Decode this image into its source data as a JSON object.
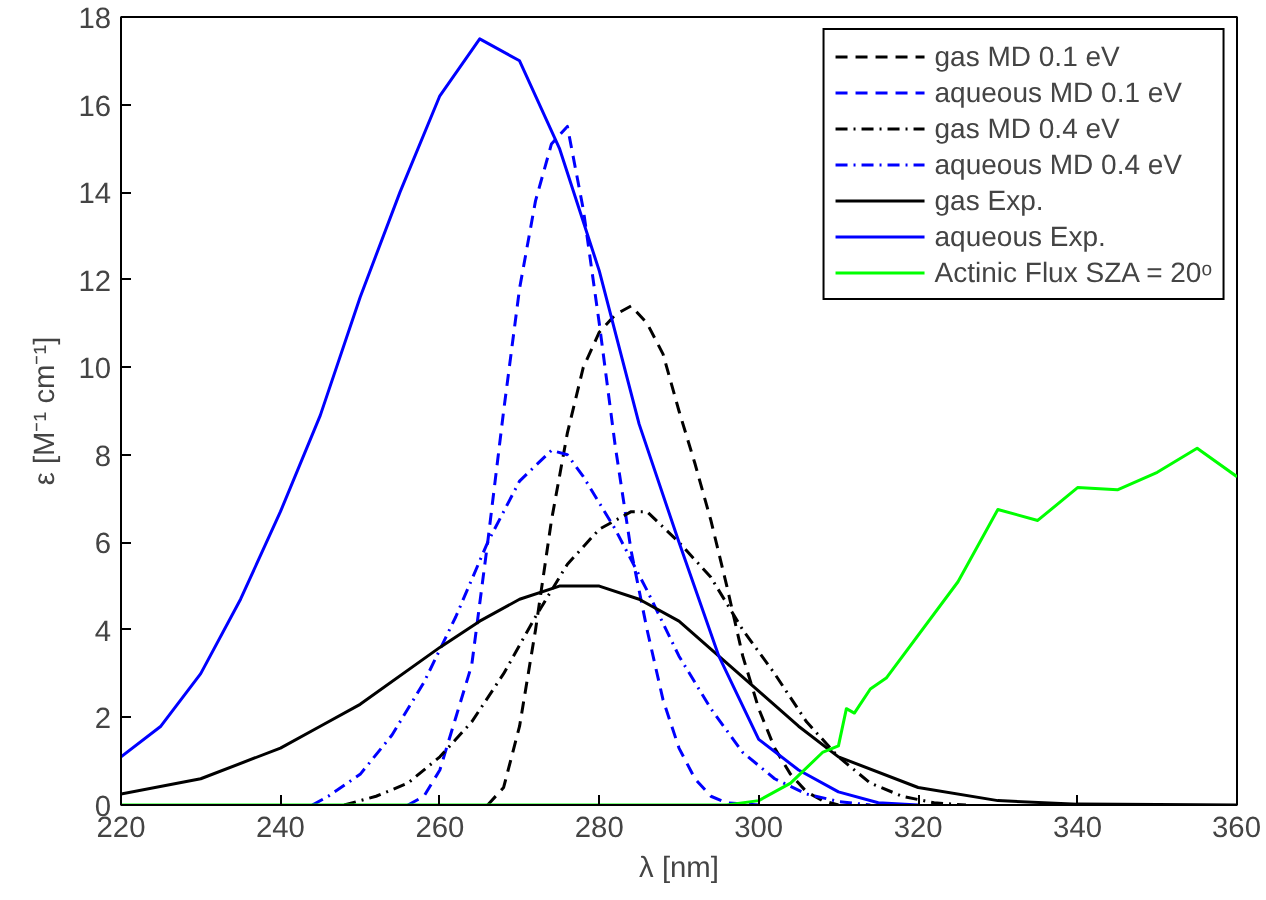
{
  "chart_data": {
    "type": "line",
    "xlabel": "λ [nm]",
    "ylabel": "ε [M⁻¹ cm⁻¹]",
    "xlim": [
      220,
      360
    ],
    "ylim": [
      0,
      18
    ],
    "xticks": [
      220,
      240,
      260,
      280,
      300,
      320,
      340,
      360
    ],
    "yticks": [
      0,
      2,
      4,
      6,
      8,
      10,
      12,
      14,
      16,
      18
    ],
    "grid": false,
    "legend": "top right",
    "marker": "none",
    "series": [
      {
        "name": "gas MD 0.1 eV",
        "color": "#000000",
        "line_style": "dashed",
        "x": [
          266,
          268,
          270,
          272,
          274,
          276,
          278,
          280,
          282,
          284,
          286,
          288,
          290,
          292,
          294,
          296,
          298,
          300,
          302,
          304,
          306,
          308,
          310
        ],
        "values": [
          0,
          0.4,
          1.8,
          4.0,
          6.5,
          8.5,
          10.0,
          10.8,
          11.2,
          11.4,
          11.0,
          10.3,
          9.0,
          7.8,
          6.5,
          5.0,
          3.4,
          2.2,
          1.3,
          0.7,
          0.3,
          0.1,
          0
        ]
      },
      {
        "name": "aqueous MD 0.1 eV",
        "color": "#0000ff",
        "line_style": "dashed",
        "x": [
          256,
          258,
          260,
          262,
          264,
          266,
          268,
          270,
          272,
          274,
          276,
          278,
          280,
          282,
          284,
          286,
          288,
          290,
          292,
          294,
          296,
          300
        ],
        "values": [
          0,
          0.2,
          0.8,
          2.0,
          3.2,
          6.0,
          9.0,
          11.8,
          13.8,
          15.1,
          15.5,
          13.6,
          11.0,
          8.2,
          5.8,
          4.0,
          2.4,
          1.3,
          0.6,
          0.2,
          0.05,
          0
        ]
      },
      {
        "name": "gas MD 0.4 eV",
        "color": "#000000",
        "line_style": "dashdot",
        "x": [
          248,
          252,
          256,
          260,
          264,
          268,
          272,
          276,
          280,
          284,
          286,
          290,
          294,
          298,
          302,
          306,
          310,
          314,
          318,
          322,
          326
        ],
        "values": [
          0,
          0.2,
          0.5,
          1.1,
          1.9,
          3.0,
          4.3,
          5.5,
          6.3,
          6.7,
          6.7,
          6.0,
          5.2,
          4.0,
          3.0,
          1.9,
          1.1,
          0.5,
          0.2,
          0.05,
          0
        ]
      },
      {
        "name": "aqueous MD 0.4 eV",
        "color": "#0000ff",
        "line_style": "dashdot",
        "x": [
          244,
          246,
          250,
          254,
          258,
          262,
          266,
          270,
          274,
          276,
          278,
          282,
          286,
          290,
          294,
          298,
          302,
          306,
          310,
          314
        ],
        "values": [
          0,
          0.2,
          0.7,
          1.6,
          2.8,
          4.3,
          6.0,
          7.4,
          8.1,
          8.0,
          7.5,
          6.3,
          4.9,
          3.4,
          2.2,
          1.2,
          0.6,
          0.25,
          0.08,
          0
        ]
      },
      {
        "name": "gas Exp.",
        "color": "#000000",
        "line_style": "solid",
        "x": [
          220,
          230,
          240,
          245,
          250,
          260,
          265,
          270,
          275,
          280,
          285,
          290,
          295,
          300,
          305,
          310,
          320,
          330,
          340,
          360
        ],
        "values": [
          0.25,
          0.6,
          1.3,
          1.8,
          2.3,
          3.6,
          4.2,
          4.7,
          5.0,
          5.0,
          4.7,
          4.2,
          3.4,
          2.6,
          1.8,
          1.1,
          0.4,
          0.1,
          0.02,
          0
        ]
      },
      {
        "name": "aqueous Exp.",
        "color": "#0000ff",
        "line_style": "solid",
        "x": [
          220,
          225,
          230,
          235,
          240,
          245,
          250,
          255,
          260,
          265,
          270,
          275,
          280,
          285,
          290,
          295,
          300,
          305,
          310,
          315,
          320
        ],
        "values": [
          1.1,
          1.8,
          3.0,
          4.7,
          6.7,
          8.9,
          11.6,
          14.0,
          16.2,
          17.5,
          17.0,
          15.0,
          12.2,
          8.7,
          6.0,
          3.4,
          1.5,
          0.8,
          0.3,
          0.05,
          0
        ]
      },
      {
        "name": "Actinic Flux SZA = 20ᵒ",
        "color": "#00ff00",
        "line_style": "solid",
        "x": [
          220,
          296,
          300,
          304,
          308,
          310,
          311,
          312,
          314,
          316,
          325,
          330,
          335,
          340,
          345,
          350,
          355,
          360
        ],
        "values": [
          0,
          0,
          0.1,
          0.5,
          1.2,
          1.35,
          2.2,
          2.1,
          2.65,
          2.9,
          5.1,
          6.75,
          6.5,
          7.25,
          7.2,
          7.6,
          8.15,
          7.5
        ]
      }
    ]
  }
}
